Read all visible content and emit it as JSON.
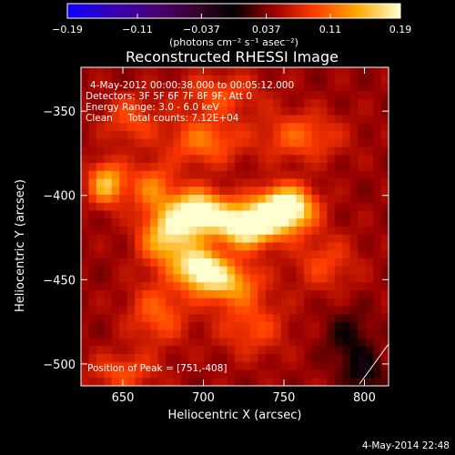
{
  "chart_data": {
    "type": "heatmap",
    "title": "Reconstructed RHESSI Image",
    "xlabel": "Heliocentric X (arcsec)",
    "ylabel": "Heliocentric Y (arcsec)",
    "xlim": [
      624,
      815
    ],
    "ylim": [
      -513,
      -324
    ],
    "x_ticks": [
      650,
      700,
      750,
      800
    ],
    "y_ticks": [
      -350,
      -400,
      -450,
      -500
    ],
    "colorbar": {
      "range": [
        -0.19,
        0.19
      ],
      "tick_values": [
        -0.19,
        -0.11,
        -0.037,
        0.037,
        0.11,
        0.19
      ],
      "tick_labels": [
        "-0.19",
        "-0.11",
        "-0.037",
        "0.037",
        "0.11",
        "0.19"
      ],
      "unit_label": "(photons cm⁻² s⁻¹ asec⁻²)"
    },
    "info_lines": [
      "4-May-2012 00:00:38.000 to 00:05:12.000",
      "Detectors: 3F 5F 6F 7F 8F 9F, Att 0",
      "Energy Range: 3.0 - 6.0 keV",
      "Clean     Total counts: 7.12E+04"
    ],
    "peak_label": "Position of Peak = [751,-408]",
    "sources": [
      {
        "x": 751,
        "y": -408,
        "amp": 0.19,
        "sx": 12,
        "sy": 9
      },
      {
        "x": 727,
        "y": -418,
        "amp": 0.17,
        "sx": 13,
        "sy": 9
      },
      {
        "x": 697,
        "y": -410,
        "amp": 0.16,
        "sx": 12,
        "sy": 9
      },
      {
        "x": 678,
        "y": -425,
        "amp": 0.12,
        "sx": 12,
        "sy": 12
      },
      {
        "x": 698,
        "y": -443,
        "amp": 0.14,
        "sx": 10,
        "sy": 8
      },
      {
        "x": 715,
        "y": -452,
        "amp": 0.1,
        "sx": 14,
        "sy": 9
      },
      {
        "x": 640,
        "y": -393,
        "amp": 0.11,
        "sx": 8,
        "sy": 9
      },
      {
        "x": 668,
        "y": -395,
        "amp": 0.07,
        "sx": 10,
        "sy": 10
      },
      {
        "x": 700,
        "y": -368,
        "amp": 0.07,
        "sx": 16,
        "sy": 10
      },
      {
        "x": 760,
        "y": -365,
        "amp": 0.06,
        "sx": 18,
        "sy": 10
      },
      {
        "x": 655,
        "y": -355,
        "amp": 0.05,
        "sx": 12,
        "sy": 10
      },
      {
        "x": 710,
        "y": -340,
        "amp": 0.05,
        "sx": 18,
        "sy": 9
      },
      {
        "x": 672,
        "y": -470,
        "amp": 0.06,
        "sx": 13,
        "sy": 13
      },
      {
        "x": 730,
        "y": -478,
        "amp": 0.05,
        "sx": 15,
        "sy": 12
      },
      {
        "x": 650,
        "y": -505,
        "amp": 0.05,
        "sx": 15,
        "sy": 8
      },
      {
        "x": 775,
        "y": -440,
        "amp": 0.045,
        "sx": 14,
        "sy": 12
      },
      {
        "x": 790,
        "y": -485,
        "amp": -0.04,
        "sx": 10,
        "sy": 12
      },
      {
        "x": 800,
        "y": -505,
        "amp": -0.05,
        "sx": 8,
        "sy": 8
      }
    ]
  },
  "footer_date": "4-May-2014 22:48"
}
